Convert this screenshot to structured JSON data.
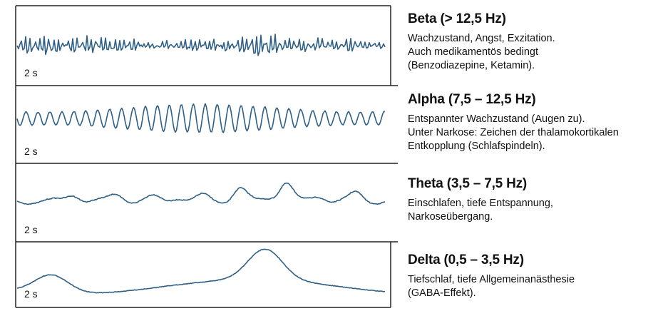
{
  "colors": {
    "trace": "#2e5f86",
    "border": "#222222"
  },
  "bands": [
    {
      "key": "beta",
      "time_label": "2 s",
      "title": "Beta (> 12,5 Hz)",
      "lines": [
        "Wachzustand, Angst, Exzitation.",
        "Auch medikamentös bedingt",
        "(Benzodiazepine, Ketamin)."
      ]
    },
    {
      "key": "alpha",
      "time_label": "2 s",
      "title": "Alpha (7,5 – 12,5 Hz)",
      "lines": [
        "Entspannter Wachzustand (Augen zu).",
        "Unter Narkose: Zeichen der thalamokortikalen",
        "Entkopplung (Schlafspindeln)."
      ]
    },
    {
      "key": "theta",
      "time_label": "2 s",
      "title": "Theta (3,5 – 7,5 Hz)",
      "lines": [
        "Einschlafen, tiefe Entspannung,",
        "Narkoseübergang."
      ]
    },
    {
      "key": "delta",
      "time_label": "2 s",
      "title": "Delta (0,5 – 3,5 Hz)",
      "lines": [
        "Tiefschlaf, tiefe Allgemeinanästhesie",
        "(GABA-Effekt)."
      ]
    }
  ]
}
